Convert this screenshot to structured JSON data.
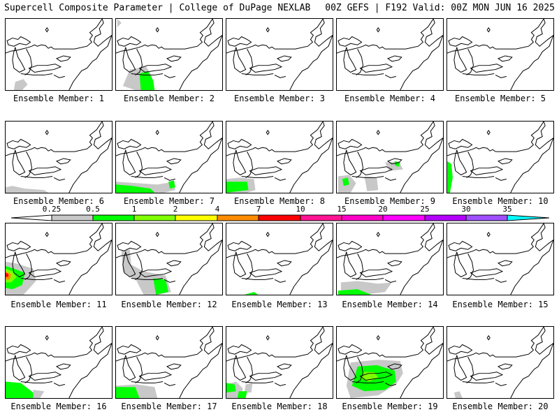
{
  "header": {
    "title_left": "Supercell Composite Parameter | College of DuPage NEXLAB",
    "title_right": "00Z GEFS | F192 Valid: 00Z MON JUN 16 2025"
  },
  "panels": [
    {
      "label": "Ensemble Member: 1"
    },
    {
      "label": "Ensemble Member: 2"
    },
    {
      "label": "Ensemble Member: 3"
    },
    {
      "label": "Ensemble Member: 4"
    },
    {
      "label": "Ensemble Member: 5"
    },
    {
      "label": "Ensemble Member: 6"
    },
    {
      "label": "Ensemble Member: 7"
    },
    {
      "label": "Ensemble Member: 8"
    },
    {
      "label": "Ensemble Member: 9"
    },
    {
      "label": "Ensemble Member: 10"
    },
    {
      "label": "Ensemble Member: 11"
    },
    {
      "label": "Ensemble Member: 12"
    },
    {
      "label": "Ensemble Member: 13"
    },
    {
      "label": "Ensemble Member: 14"
    },
    {
      "label": "Ensemble Member: 15"
    },
    {
      "label": "Ensemble Member: 16"
    },
    {
      "label": "Ensemble Member: 17"
    },
    {
      "label": "Ensemble Member: 18"
    },
    {
      "label": "Ensemble Member: 19"
    },
    {
      "label": "Ensemble Member: 20"
    }
  ],
  "colorbar": {
    "thresholds": [
      "0.25",
      "0.5",
      "1",
      "2",
      "4",
      "7",
      "10",
      "15",
      "20",
      "25",
      "30",
      "35"
    ],
    "colors": [
      "#c8c8c8",
      "#00ff00",
      "#7fff00",
      "#ffff00",
      "#ff8c00",
      "#ff0000",
      "#ff1493",
      "#ff00c8",
      "#ff00ff",
      "#b400ff",
      "#a050ff",
      "#00ffff"
    ]
  },
  "map": {
    "line_color": "#000000"
  }
}
